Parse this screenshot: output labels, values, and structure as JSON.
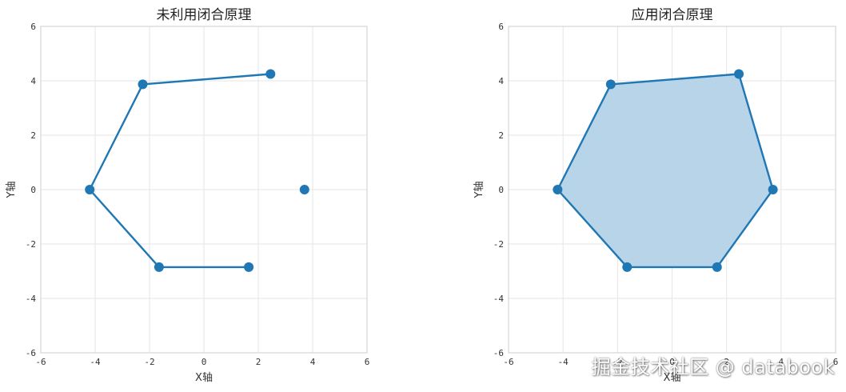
{
  "chart_data": [
    {
      "type": "line",
      "title": "未利用闭合原理",
      "xlabel": "X轴",
      "ylabel": "Y轴",
      "xlim": [
        -6,
        6
      ],
      "ylim": [
        -6,
        6
      ],
      "xticks": [
        "-6",
        "-4",
        "-2",
        "0",
        "2",
        "4",
        "6"
      ],
      "yticks": [
        "-6",
        "-4",
        "-2",
        "0",
        "2",
        "4",
        "6"
      ],
      "grid": true,
      "closed": false,
      "filled": false,
      "color": "#1f77b4",
      "points": [
        {
          "x": 3.7,
          "y": 0.0
        },
        {
          "x": 2.45,
          "y": 4.25
        },
        {
          "x": -2.25,
          "y": 3.87
        },
        {
          "x": -4.2,
          "y": 0.0
        },
        {
          "x": -1.65,
          "y": -2.85
        },
        {
          "x": 1.65,
          "y": -2.85
        }
      ],
      "open_segments": [
        [
          1,
          2
        ],
        [
          2,
          3
        ],
        [
          3,
          4
        ],
        [
          4,
          5
        ]
      ]
    },
    {
      "type": "area",
      "title": "应用闭合原理",
      "xlabel": "X轴",
      "ylabel": "Y轴",
      "xlim": [
        -6,
        6
      ],
      "ylim": [
        -6,
        6
      ],
      "xticks": [
        "-6",
        "-4",
        "-2",
        "0",
        "2",
        "4",
        "6"
      ],
      "yticks": [
        "-6",
        "-4",
        "-2",
        "0",
        "2",
        "4",
        "6"
      ],
      "grid": true,
      "closed": true,
      "filled": true,
      "color": "#1f77b4",
      "fill_color": "#b8d4e8",
      "points": [
        {
          "x": 3.7,
          "y": 0.0
        },
        {
          "x": 2.45,
          "y": 4.25
        },
        {
          "x": -2.25,
          "y": 3.87
        },
        {
          "x": -4.2,
          "y": 0.0
        },
        {
          "x": -1.65,
          "y": -2.85
        },
        {
          "x": 1.65,
          "y": -2.85
        }
      ]
    }
  ],
  "watermark": "掘金技术社区 @ databook"
}
